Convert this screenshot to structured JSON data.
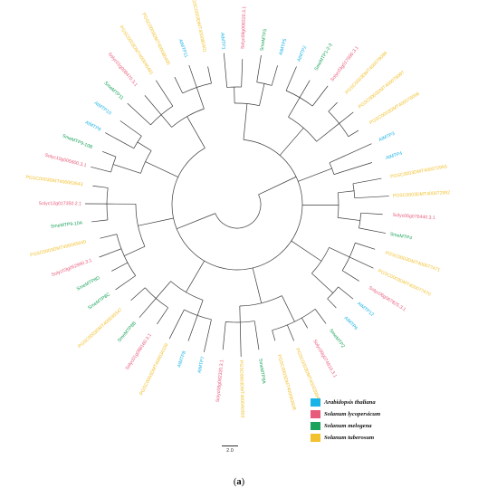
{
  "legend": [
    {
      "label": "Arabidopsis thaliana",
      "color": "#19b3e6"
    },
    {
      "label": "Solanum lycopersicum",
      "color": "#e85a7a"
    },
    {
      "label": "Solanum melogena",
      "color": "#1aa35b"
    },
    {
      "label": "Solanum tuberosum",
      "color": "#f2c12e"
    }
  ],
  "scale_bar": {
    "label": "2.0"
  },
  "caption": {
    "open": "(",
    "letter": "a",
    "close": ")"
  },
  "tree": {
    "colors": {
      "at": "#19b3e6",
      "sl": "#e85a7a",
      "sm": "#1aa35b",
      "st": "#f2c12e",
      "branch": "#3a3a3a"
    },
    "leaves": [
      {
        "label": "AtMTP1",
        "species": "at"
      },
      {
        "label": "Solyc09g008320.3.1",
        "species": "sl"
      },
      {
        "label": "SmeMTP5",
        "species": "sm"
      },
      {
        "label": "AtMTP5",
        "species": "at"
      },
      {
        "label": "AtMTP2",
        "species": "at"
      },
      {
        "label": "SmeMTP1-2-3",
        "species": "sm"
      },
      {
        "label": "Solyc03g017690.3.1",
        "species": "sl"
      },
      {
        "label": "PGSC0003DMT400078099",
        "species": "st"
      },
      {
        "label": "PGSC0003DMT400078097",
        "species": "st"
      },
      {
        "label": "PGSC0003DMT400078096",
        "species": "st"
      },
      {
        "label": "AtMTP3",
        "species": "at"
      },
      {
        "label": "AtMTP4",
        "species": "at"
      },
      {
        "label": "PGSC0003DMT400072993",
        "species": "st"
      },
      {
        "label": "PGSC0003DMT400072992",
        "species": "st"
      },
      {
        "label": "Solyc06g076440.3.1",
        "species": "sl"
      },
      {
        "label": "SmeMTP4",
        "species": "sm"
      },
      {
        "label": "PGSC0003DMT400077471",
        "species": "st"
      },
      {
        "label": "PGSC0003DMT400077470",
        "species": "st"
      },
      {
        "label": "Solyc06g067825.3.1",
        "species": "sl"
      },
      {
        "label": "AtMTP12",
        "species": "at"
      },
      {
        "label": "AtMTP6",
        "species": "at"
      },
      {
        "label": "SmeMTP2",
        "species": "sm"
      },
      {
        "label": "Solyc09g074610.3.1",
        "species": "sl"
      },
      {
        "label": "PGSC0003DMT400039947",
        "species": "st"
      },
      {
        "label": "PGSC0003DMT400063608",
        "species": "st"
      },
      {
        "label": "SmeMTP8A",
        "species": "sm"
      },
      {
        "label": "PGSC0003DMT400040303",
        "species": "st"
      },
      {
        "label": "Solyc08g082320.3.1",
        "species": "sl"
      },
      {
        "label": "AtMTP7",
        "species": "at"
      },
      {
        "label": "AtMTP8",
        "species": "at"
      },
      {
        "label": "PGSC0003DMT400034109",
        "species": "st"
      },
      {
        "label": "Solyc01g098160.3.1",
        "species": "sl"
      },
      {
        "label": "SmeMTP8B",
        "species": "sm"
      },
      {
        "label": "PGSC0003DMT400030347",
        "species": "st"
      },
      {
        "label": "SmeMTP8C",
        "species": "sm"
      },
      {
        "label": "SmeMTP8D",
        "species": "sm"
      },
      {
        "label": "Solyc03g052990.3.1",
        "species": "sl"
      },
      {
        "label": "PGSC0003DMT400045640",
        "species": "st"
      },
      {
        "label": "SmeMTP9-10A",
        "species": "sm"
      },
      {
        "label": "Solyc12g017350.2.1",
        "species": "sl"
      },
      {
        "label": "PGSC0003DMT400063543",
        "species": "st"
      },
      {
        "label": "Solyc10g005600.3.1",
        "species": "sl"
      },
      {
        "label": "SmeMTP9-10B",
        "species": "sm"
      },
      {
        "label": "AtMTP9",
        "species": "at"
      },
      {
        "label": "AtMTP10",
        "species": "at"
      },
      {
        "label": "SmeMTP11",
        "species": "sm"
      },
      {
        "label": "Solyc01g008470.3.1",
        "species": "sl"
      },
      {
        "label": "PGSC0003DMT400045481",
        "species": "st"
      },
      {
        "label": "PGSC0003DMT400080405",
        "species": "st"
      },
      {
        "label": "AtMTP11",
        "species": "at"
      },
      {
        "label": "PGSC0003DMT400080401",
        "species": "st"
      }
    ],
    "clades": [
      [
        0,
        3
      ],
      [
        4,
        9
      ],
      [
        10,
        11
      ],
      [
        12,
        15
      ],
      [
        16,
        20
      ],
      [
        21,
        27
      ],
      [
        28,
        33
      ],
      [
        34,
        40
      ],
      [
        41,
        44
      ],
      [
        45,
        50
      ]
    ]
  }
}
